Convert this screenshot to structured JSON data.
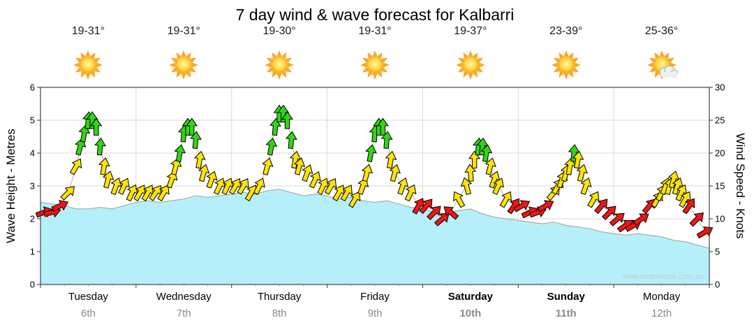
{
  "page": {
    "title": "7 day wind & wave forecast for Kalbarri",
    "watermark": "www.seabreeze.com.au"
  },
  "axes": {
    "left_title": "Wave Height - Metres",
    "right_title": "Wind Speed - Knots"
  },
  "days": [
    {
      "name": "Tuesday",
      "date": "6th",
      "temp": "19-31°",
      "icon": "sun",
      "weekend": false
    },
    {
      "name": "Wednesday",
      "date": "7th",
      "temp": "19-31°",
      "icon": "sun",
      "weekend": false
    },
    {
      "name": "Thursday",
      "date": "8th",
      "temp": "19-30°",
      "icon": "sun",
      "weekend": false
    },
    {
      "name": "Friday",
      "date": "9th",
      "temp": "19-31°",
      "icon": "sun",
      "weekend": false
    },
    {
      "name": "Saturday",
      "date": "10th",
      "temp": "19-37°",
      "icon": "sun",
      "weekend": true
    },
    {
      "name": "Sunday",
      "date": "11th",
      "temp": "23-39°",
      "icon": "sun",
      "weekend": true
    },
    {
      "name": "Monday",
      "date": "12th",
      "temp": "25-36°",
      "icon": "sun-cloud",
      "weekend": false
    }
  ],
  "chart_data": {
    "type": "line",
    "title": "7 day wind & wave forecast for Kalbarri",
    "x_axis": {
      "unit": "hours_from_tuesday_00",
      "min": 0,
      "max": 168,
      "hours_per_day": 24,
      "day_labels": [
        "Tuesday 6th",
        "Wednesday 7th",
        "Thursday 8th",
        "Friday 9th",
        "Saturday 10th",
        "Sunday 11th",
        "Monday 12th"
      ]
    },
    "left_axis": {
      "label": "Wave Height - Metres",
      "min": 0,
      "max": 6,
      "ticks": [
        0,
        1,
        2,
        3,
        4,
        5,
        6
      ]
    },
    "right_axis": {
      "label": "Wind Speed - Knots",
      "min": 0,
      "max": 30,
      "ticks": [
        0,
        5,
        10,
        15,
        20,
        25,
        30
      ]
    },
    "wave_height_m": [
      [
        0,
        2.5
      ],
      [
        3,
        2.45
      ],
      [
        6,
        2.4
      ],
      [
        9,
        2.3
      ],
      [
        12,
        2.3
      ],
      [
        15,
        2.35
      ],
      [
        18,
        2.3
      ],
      [
        21,
        2.4
      ],
      [
        24,
        2.5
      ],
      [
        27,
        2.55
      ],
      [
        30,
        2.5
      ],
      [
        33,
        2.55
      ],
      [
        36,
        2.6
      ],
      [
        39,
        2.7
      ],
      [
        42,
        2.65
      ],
      [
        45,
        2.7
      ],
      [
        48,
        2.75
      ],
      [
        51,
        2.8
      ],
      [
        54,
        2.75
      ],
      [
        57,
        2.85
      ],
      [
        60,
        2.9
      ],
      [
        63,
        2.8
      ],
      [
        66,
        2.7
      ],
      [
        69,
        2.75
      ],
      [
        72,
        2.7
      ],
      [
        75,
        2.6
      ],
      [
        78,
        2.65
      ],
      [
        81,
        2.55
      ],
      [
        84,
        2.5
      ],
      [
        87,
        2.55
      ],
      [
        90,
        2.45
      ],
      [
        93,
        2.35
      ],
      [
        96,
        2.3
      ],
      [
        99,
        2.2
      ],
      [
        102,
        2.15
      ],
      [
        105,
        2.25
      ],
      [
        108,
        2.3
      ],
      [
        111,
        2.15
      ],
      [
        114,
        2.05
      ],
      [
        117,
        2.0
      ],
      [
        120,
        1.95
      ],
      [
        123,
        1.9
      ],
      [
        126,
        1.85
      ],
      [
        129,
        1.9
      ],
      [
        132,
        1.8
      ],
      [
        135,
        1.75
      ],
      [
        138,
        1.7
      ],
      [
        141,
        1.6
      ],
      [
        144,
        1.55
      ],
      [
        147,
        1.5
      ],
      [
        150,
        1.55
      ],
      [
        153,
        1.5
      ],
      [
        156,
        1.45
      ],
      [
        159,
        1.35
      ],
      [
        162,
        1.3
      ],
      [
        165,
        1.2
      ],
      [
        168,
        1.1
      ]
    ],
    "wind_arrows_t_knots_dir": [
      [
        1,
        11,
        70
      ],
      [
        3,
        11,
        75
      ],
      [
        5,
        12,
        65
      ],
      [
        7,
        14,
        45
      ],
      [
        9,
        18,
        30
      ],
      [
        10,
        21,
        15
      ],
      [
        11,
        23,
        10
      ],
      [
        12,
        25,
        5
      ],
      [
        13,
        25,
        0
      ],
      [
        14,
        24,
        0
      ],
      [
        15,
        21,
        5
      ],
      [
        16,
        18,
        10
      ],
      [
        17,
        16,
        15
      ],
      [
        19,
        15,
        20
      ],
      [
        21,
        15,
        25
      ],
      [
        23,
        14,
        25
      ],
      [
        25,
        14,
        30
      ],
      [
        27,
        14,
        30
      ],
      [
        29,
        14,
        35
      ],
      [
        31,
        14,
        30
      ],
      [
        33,
        16,
        20
      ],
      [
        34,
        18,
        15
      ],
      [
        35,
        20,
        10
      ],
      [
        36,
        23,
        5
      ],
      [
        37,
        24,
        0
      ],
      [
        38,
        24,
        0
      ],
      [
        39,
        22,
        5
      ],
      [
        40,
        19,
        10
      ],
      [
        41,
        17,
        15
      ],
      [
        43,
        16,
        20
      ],
      [
        45,
        15,
        25
      ],
      [
        47,
        15,
        25
      ],
      [
        49,
        15,
        30
      ],
      [
        51,
        15,
        30
      ],
      [
        53,
        14,
        30
      ],
      [
        55,
        15,
        25
      ],
      [
        57,
        18,
        15
      ],
      [
        58,
        21,
        10
      ],
      [
        59,
        24,
        5
      ],
      [
        60,
        26,
        0
      ],
      [
        61,
        26,
        0
      ],
      [
        62,
        25,
        0
      ],
      [
        63,
        22,
        5
      ],
      [
        64,
        19,
        10
      ],
      [
        65,
        18,
        15
      ],
      [
        67,
        17,
        20
      ],
      [
        69,
        16,
        25
      ],
      [
        71,
        15,
        25
      ],
      [
        73,
        15,
        30
      ],
      [
        75,
        14,
        30
      ],
      [
        77,
        14,
        30
      ],
      [
        79,
        13,
        30
      ],
      [
        81,
        15,
        20
      ],
      [
        82,
        17,
        15
      ],
      [
        83,
        20,
        10
      ],
      [
        84,
        23,
        5
      ],
      [
        85,
        24,
        0
      ],
      [
        86,
        24,
        0
      ],
      [
        87,
        22,
        5
      ],
      [
        88,
        19,
        10
      ],
      [
        89,
        17,
        15
      ],
      [
        91,
        15,
        20
      ],
      [
        93,
        14,
        25
      ],
      [
        95,
        12,
        30
      ],
      [
        97,
        12,
        40
      ],
      [
        99,
        11,
        45
      ],
      [
        101,
        10,
        50
      ],
      [
        103,
        11,
        -50
      ],
      [
        105,
        13,
        -30
      ],
      [
        107,
        15,
        -15
      ],
      [
        108,
        17,
        -5
      ],
      [
        109,
        19,
        0
      ],
      [
        110,
        21,
        5
      ],
      [
        111,
        21,
        5
      ],
      [
        112,
        20,
        10
      ],
      [
        113,
        18,
        15
      ],
      [
        114,
        16,
        20
      ],
      [
        115,
        15,
        25
      ],
      [
        117,
        13,
        30
      ],
      [
        119,
        12,
        35
      ],
      [
        121,
        12,
        60
      ],
      [
        123,
        11,
        65
      ],
      [
        125,
        11,
        70
      ],
      [
        127,
        12,
        60
      ],
      [
        129,
        14,
        40
      ],
      [
        130,
        15,
        30
      ],
      [
        131,
        16,
        20
      ],
      [
        132,
        17,
        15
      ],
      [
        133,
        18,
        10
      ],
      [
        134,
        20,
        5
      ],
      [
        135,
        19,
        10
      ],
      [
        136,
        17,
        15
      ],
      [
        137,
        15,
        20
      ],
      [
        139,
        13,
        30
      ],
      [
        141,
        12,
        40
      ],
      [
        143,
        11,
        45
      ],
      [
        145,
        10,
        50
      ],
      [
        147,
        9,
        55
      ],
      [
        149,
        9,
        60
      ],
      [
        151,
        10,
        55
      ],
      [
        153,
        12,
        40
      ],
      [
        155,
        13,
        30
      ],
      [
        156,
        14,
        25
      ],
      [
        157,
        15,
        20
      ],
      [
        158,
        15,
        15
      ],
      [
        159,
        16,
        15
      ],
      [
        160,
        15,
        20
      ],
      [
        161,
        14,
        25
      ],
      [
        162,
        13,
        30
      ],
      [
        163,
        12,
        35
      ],
      [
        165,
        10,
        45
      ],
      [
        167,
        8,
        60
      ]
    ],
    "arrow_color_rules": {
      "red_below_knots": 13,
      "green_at_or_above_knots": 20
    },
    "colors": {
      "wave_fill": "#b5f0fa",
      "wave_line": "#9aa0a0",
      "arrow_red": "#ee1515",
      "arrow_yellow": "#ffe400",
      "arrow_green": "#33d515",
      "grid": "#d9d9d9",
      "border": "#444444",
      "watermark": "#c2cdd1"
    }
  }
}
